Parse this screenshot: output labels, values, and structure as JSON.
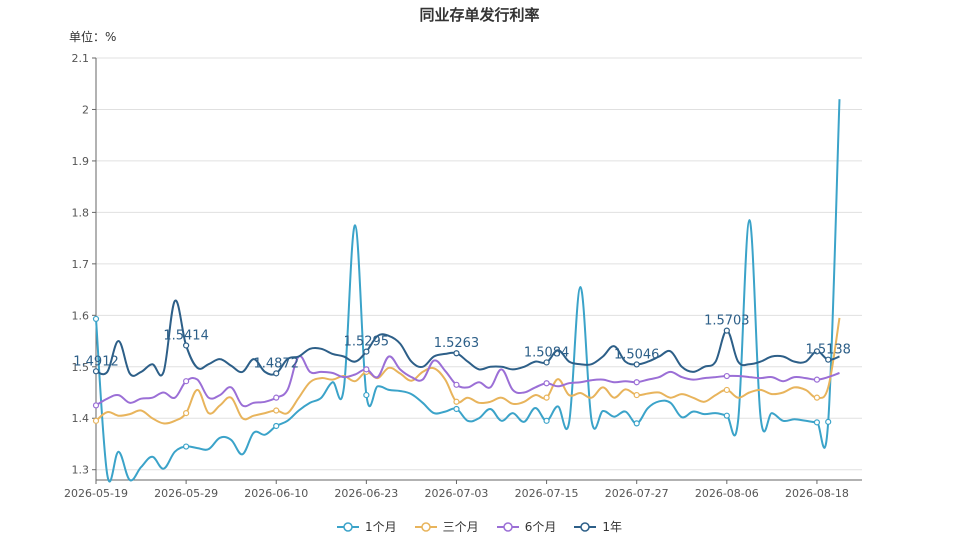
{
  "chart_data": {
    "type": "line",
    "title": "同业存单发行利率",
    "unit_label": "单位：%",
    "ylim": [
      1.28,
      2.1
    ],
    "yticks": [
      1.3,
      1.4,
      1.5,
      1.6,
      1.7,
      1.8,
      1.9,
      2,
      2.1
    ],
    "ytick_labels": [
      "1.3",
      "1.4",
      "1.5",
      "1.6",
      "1.7",
      "1.8",
      "1.9",
      "2",
      "2.1"
    ],
    "x_range": [
      0,
      68
    ],
    "xticks": [
      {
        "pos": 0,
        "label": "2026-05-19"
      },
      {
        "pos": 8,
        "label": "2026-05-29"
      },
      {
        "pos": 16,
        "label": "2026-06-10"
      },
      {
        "pos": 24,
        "label": "2026-06-23"
      },
      {
        "pos": 32,
        "label": "2026-07-03"
      },
      {
        "pos": 40,
        "label": "2026-07-15"
      },
      {
        "pos": 48,
        "label": "2026-07-27"
      },
      {
        "pos": 56,
        "label": "2026-08-06"
      },
      {
        "pos": 64,
        "label": "2026-08-18"
      }
    ],
    "grid": true,
    "legend_position": "bottom-center",
    "series": [
      {
        "name": "1个月",
        "color": "#3ba3c9",
        "x": [
          0,
          1,
          2,
          3,
          4,
          5,
          6,
          7,
          8,
          9,
          10,
          11,
          12,
          13,
          14,
          15,
          16,
          17,
          18,
          19,
          20,
          21,
          22,
          23,
          24,
          25,
          26,
          27,
          28,
          29,
          30,
          31,
          32,
          33,
          34,
          35,
          36,
          37,
          38,
          39,
          40,
          41,
          42,
          43,
          44,
          45,
          46,
          47,
          48,
          49,
          50,
          51,
          52,
          53,
          54,
          55,
          56,
          57,
          58,
          59,
          60,
          61,
          62,
          63,
          64,
          65,
          66
        ],
        "values": [
          1.593,
          1.29,
          1.335,
          1.28,
          1.305,
          1.325,
          1.302,
          1.335,
          1.345,
          1.342,
          1.34,
          1.362,
          1.358,
          1.33,
          1.372,
          1.368,
          1.385,
          1.395,
          1.415,
          1.43,
          1.44,
          1.47,
          1.458,
          1.775,
          1.445,
          1.462,
          1.455,
          1.453,
          1.447,
          1.43,
          1.41,
          1.413,
          1.418,
          1.395,
          1.4,
          1.418,
          1.395,
          1.41,
          1.393,
          1.42,
          1.395,
          1.423,
          1.392,
          1.655,
          1.395,
          1.414,
          1.403,
          1.413,
          1.39,
          1.42,
          1.433,
          1.43,
          1.402,
          1.413,
          1.408,
          1.41,
          1.405,
          1.395,
          1.785,
          1.402,
          1.41,
          1.395,
          1.398,
          1.395,
          1.392,
          1.393,
          2.02
        ],
        "point_labels": {}
      },
      {
        "name": "三个月",
        "color": "#e8b45c",
        "x": [
          0,
          1,
          2,
          3,
          4,
          5,
          6,
          7,
          8,
          9,
          10,
          11,
          12,
          13,
          14,
          15,
          16,
          17,
          18,
          19,
          20,
          21,
          22,
          23,
          24,
          25,
          26,
          27,
          28,
          29,
          30,
          31,
          32,
          33,
          34,
          35,
          36,
          37,
          38,
          39,
          40,
          41,
          42,
          43,
          44,
          45,
          46,
          47,
          48,
          49,
          50,
          51,
          52,
          53,
          54,
          55,
          56,
          57,
          58,
          59,
          60,
          61,
          62,
          63,
          64,
          65,
          66
        ],
        "values": [
          1.395,
          1.412,
          1.405,
          1.408,
          1.415,
          1.4,
          1.39,
          1.395,
          1.41,
          1.455,
          1.41,
          1.425,
          1.44,
          1.4,
          1.405,
          1.41,
          1.415,
          1.41,
          1.44,
          1.47,
          1.478,
          1.475,
          1.482,
          1.472,
          1.49,
          1.478,
          1.498,
          1.487,
          1.473,
          1.49,
          1.497,
          1.475,
          1.432,
          1.44,
          1.43,
          1.432,
          1.44,
          1.428,
          1.432,
          1.445,
          1.44,
          1.476,
          1.445,
          1.449,
          1.44,
          1.46,
          1.44,
          1.456,
          1.445,
          1.448,
          1.45,
          1.44,
          1.447,
          1.44,
          1.432,
          1.445,
          1.455,
          1.44,
          1.45,
          1.455,
          1.447,
          1.45,
          1.46,
          1.455,
          1.44,
          1.46,
          1.595
        ],
        "point_labels": {}
      },
      {
        "name": "6个月",
        "color": "#9b6fd6",
        "x": [
          0,
          1,
          2,
          3,
          4,
          5,
          6,
          7,
          8,
          9,
          10,
          11,
          12,
          13,
          14,
          15,
          16,
          17,
          18,
          19,
          20,
          21,
          22,
          23,
          24,
          25,
          26,
          27,
          28,
          29,
          30,
          31,
          32,
          33,
          34,
          35,
          36,
          37,
          38,
          39,
          40,
          41,
          42,
          43,
          44,
          45,
          46,
          47,
          48,
          49,
          50,
          51,
          52,
          53,
          54,
          55,
          56,
          57,
          58,
          59,
          60,
          61,
          62,
          63,
          64,
          65,
          66
        ],
        "values": [
          1.425,
          1.438,
          1.445,
          1.43,
          1.438,
          1.44,
          1.45,
          1.44,
          1.472,
          1.475,
          1.44,
          1.445,
          1.46,
          1.425,
          1.43,
          1.432,
          1.44,
          1.455,
          1.52,
          1.49,
          1.49,
          1.488,
          1.48,
          1.485,
          1.495,
          1.48,
          1.52,
          1.495,
          1.48,
          1.475,
          1.512,
          1.492,
          1.465,
          1.46,
          1.47,
          1.46,
          1.495,
          1.455,
          1.45,
          1.46,
          1.468,
          1.462,
          1.468,
          1.47,
          1.474,
          1.475,
          1.47,
          1.472,
          1.47,
          1.475,
          1.48,
          1.49,
          1.48,
          1.475,
          1.478,
          1.48,
          1.482,
          1.482,
          1.48,
          1.478,
          1.48,
          1.472,
          1.48,
          1.478,
          1.475,
          1.48,
          1.488
        ],
        "point_labels": {}
      },
      {
        "name": "1年",
        "color": "#2d5f88",
        "x": [
          0,
          1,
          2,
          3,
          4,
          5,
          6,
          7,
          8,
          9,
          10,
          11,
          12,
          13,
          14,
          15,
          16,
          17,
          18,
          19,
          20,
          21,
          22,
          23,
          24,
          25,
          26,
          27,
          28,
          29,
          30,
          31,
          32,
          33,
          34,
          35,
          36,
          37,
          38,
          39,
          40,
          41,
          42,
          43,
          44,
          45,
          46,
          47,
          48,
          49,
          50,
          51,
          52,
          53,
          54,
          55,
          56,
          57,
          58,
          59,
          60,
          61,
          62,
          63,
          64,
          65,
          66
        ],
        "values": [
          1.4912,
          1.49,
          1.55,
          1.487,
          1.49,
          1.505,
          1.49,
          1.628,
          1.5414,
          1.498,
          1.505,
          1.515,
          1.502,
          1.49,
          1.515,
          1.49,
          1.4872,
          1.515,
          1.52,
          1.535,
          1.535,
          1.525,
          1.52,
          1.51,
          1.5295,
          1.56,
          1.56,
          1.545,
          1.51,
          1.5,
          1.52,
          1.525,
          1.5263,
          1.51,
          1.495,
          1.5,
          1.5,
          1.495,
          1.5,
          1.51,
          1.5084,
          1.532,
          1.51,
          1.505,
          1.505,
          1.52,
          1.54,
          1.51,
          1.5046,
          1.51,
          1.52,
          1.53,
          1.5,
          1.49,
          1.5,
          1.51,
          1.5703,
          1.51,
          1.505,
          1.51,
          1.52,
          1.52,
          1.51,
          1.51,
          1.53,
          1.5138,
          1.52
        ],
        "point_labels": {
          "0": "1.4912",
          "8": "1.5414",
          "16": "1.4872",
          "24": "1.5295",
          "32": "1.5263",
          "40": "1.5084",
          "48": "1.5046",
          "56": "1.5703",
          "65": "1.5138"
        }
      }
    ]
  },
  "legend": {
    "items": [
      "1个月",
      "三个月",
      "6个月",
      "1年"
    ]
  }
}
